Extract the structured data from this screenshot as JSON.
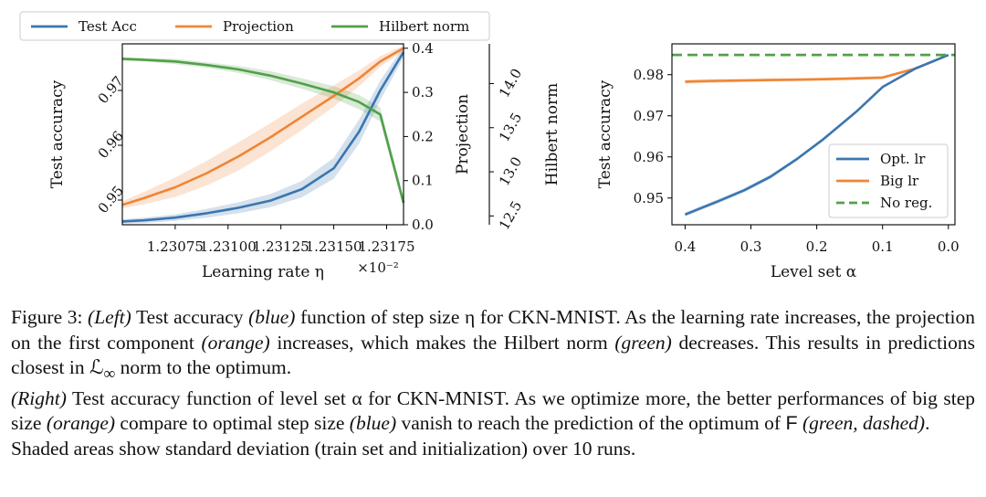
{
  "colors": {
    "blue": "#3a76af",
    "orange": "#ef8536",
    "green": "#52a04a"
  },
  "chart_data": [
    {
      "type": "line",
      "title": "",
      "xlabel": "Learning rate η",
      "x_scale_note": "×10⁻²",
      "x": [
        1.2305,
        1.2306,
        1.23075,
        1.2309,
        1.23105,
        1.2312,
        1.23135,
        1.2315,
        1.23162,
        1.23172,
        1.23183
      ],
      "xlim": [
        1.2305,
        1.23183
      ],
      "xticks": [
        1.23075,
        1.231,
        1.23125,
        1.2315,
        1.23175
      ],
      "xtick_labels": [
        "1.23075",
        "1.23100",
        "1.23125",
        "1.23150",
        "1.23175"
      ],
      "legend": {
        "position": "top (above plot)",
        "entries": [
          "Test Acc",
          "Projection",
          "Hilbert norm"
        ]
      },
      "series": [
        {
          "name": "Test Acc",
          "color_key": "blue",
          "axis": "Test accuracy",
          "values": [
            0.9461,
            0.9463,
            0.9468,
            0.9476,
            0.9486,
            0.9499,
            0.952,
            0.9558,
            0.9625,
            0.97,
            0.977
          ],
          "band": [
            0.0004,
            0.0005,
            0.0006,
            0.0008,
            0.001,
            0.0012,
            0.0015,
            0.0019,
            0.0022,
            0.0018,
            0.001
          ]
        },
        {
          "name": "Projection",
          "color_key": "orange",
          "axis": "Projection",
          "values": [
            0.045,
            0.06,
            0.085,
            0.117,
            0.155,
            0.198,
            0.245,
            0.292,
            0.332,
            0.37,
            0.4
          ],
          "band": [
            0.008,
            0.014,
            0.022,
            0.028,
            0.032,
            0.032,
            0.03,
            0.024,
            0.018,
            0.012,
            0.006
          ]
        },
        {
          "name": "Hilbert norm",
          "color_key": "green",
          "axis": "Hilbert norm",
          "values": [
            14.28,
            14.27,
            14.25,
            14.21,
            14.16,
            14.09,
            14.0,
            13.9,
            13.79,
            13.65,
            12.65
          ],
          "band": [
            0.02,
            0.02,
            0.03,
            0.03,
            0.04,
            0.05,
            0.06,
            0.07,
            0.08,
            0.08,
            0.06
          ]
        }
      ],
      "axes": [
        {
          "label": "Test accuracy",
          "side": "left",
          "ylim": [
            0.9455,
            0.9785
          ],
          "ticks": [
            0.95,
            0.96,
            0.97
          ],
          "tick_labels": [
            "0.95",
            "0.96",
            "0.97"
          ]
        },
        {
          "label": "Projection",
          "side": "right",
          "ylim": [
            0.0,
            0.41
          ],
          "ticks": [
            0.0,
            0.1,
            0.2,
            0.3,
            0.4
          ],
          "tick_labels": [
            "0.0",
            "0.1",
            "0.2",
            "0.3",
            "0.4"
          ]
        },
        {
          "label": "Hilbert norm",
          "side": "right-outer",
          "ylim": [
            12.4,
            14.45
          ],
          "ticks": [
            12.5,
            13.0,
            13.5,
            14.0
          ],
          "tick_labels": [
            "12.5",
            "13.0",
            "13.5",
            "14.0"
          ]
        }
      ]
    },
    {
      "type": "line",
      "title": "",
      "xlabel": "Level set α",
      "ylabel": "Test accuracy",
      "x": [
        0.4,
        0.35,
        0.31,
        0.27,
        0.23,
        0.19,
        0.14,
        0.1,
        0.05,
        0.0
      ],
      "xlim": [
        0.42,
        -0.01
      ],
      "xticks": [
        0.4,
        0.3,
        0.2,
        0.1,
        0.0
      ],
      "xtick_labels": [
        "0.4",
        "0.3",
        "0.2",
        "0.1",
        "0.0"
      ],
      "ylim": [
        0.9435,
        0.9875
      ],
      "yticks": [
        0.95,
        0.96,
        0.97,
        0.98
      ],
      "ytick_labels": [
        "0.95",
        "0.96",
        "0.97",
        "0.98"
      ],
      "legend": {
        "position": "lower right",
        "entries": [
          "Opt. lr",
          "Big lr",
          "No reg."
        ]
      },
      "series": [
        {
          "name": "Opt. lr",
          "color_key": "blue",
          "style": "solid",
          "values": [
            0.946,
            0.9492,
            0.9519,
            0.9552,
            0.9595,
            0.9643,
            0.971,
            0.977,
            0.9815,
            0.9848
          ],
          "band": [
            0.0005,
            0.0005,
            0.0005,
            0.0005,
            0.0004,
            0.0004,
            0.0003,
            0.0003,
            0.0002,
            0.0002
          ]
        },
        {
          "name": "Big lr",
          "color_key": "orange",
          "style": "solid",
          "values": [
            0.9783,
            0.9785,
            0.9786,
            0.9787,
            0.9788,
            0.9789,
            0.9791,
            0.9793,
            0.9815,
            0.9848
          ],
          "band": [
            0.0005,
            0.0005,
            0.0004,
            0.0004,
            0.0004,
            0.0004,
            0.0004,
            0.0004,
            0.0003,
            0.0002
          ]
        },
        {
          "name": "No reg.",
          "color_key": "green",
          "style": "dashed",
          "constant": 0.9848
        }
      ]
    }
  ],
  "caption": {
    "figure_label": "Figure 3:",
    "left_tag": "(Left)",
    "p1_a": " Test accuracy ",
    "p1_blue": "(blue)",
    "p1_b": " function of step size η for CKN-MNIST. As the learning rate increases, the projection on the first component ",
    "p1_orange": "(orange)",
    "p1_c": " increases, which makes the Hilbert norm ",
    "p1_green": "(green)",
    "p1_d": " decreases. This results in predictions closest in ℒ",
    "p1_sub": "∞",
    "p1_e": " norm to the optimum.",
    "right_tag": "(Right)",
    "p2_a": " Test accuracy function of level set α for CKN-MNIST. As we optimize more, the better performances of big step size ",
    "p2_orange": "(orange)",
    "p2_b": " compare to optimal step size ",
    "p2_blue": "(blue)",
    "p2_c": " vanish to reach the prediction of the optimum of ",
    "p2_F": "F",
    "p2_d": " ",
    "p2_green": "(green, dashed)",
    "p2_e": ".",
    "p3": "Shaded areas show standard deviation (train set and initialization) over 10 runs."
  }
}
